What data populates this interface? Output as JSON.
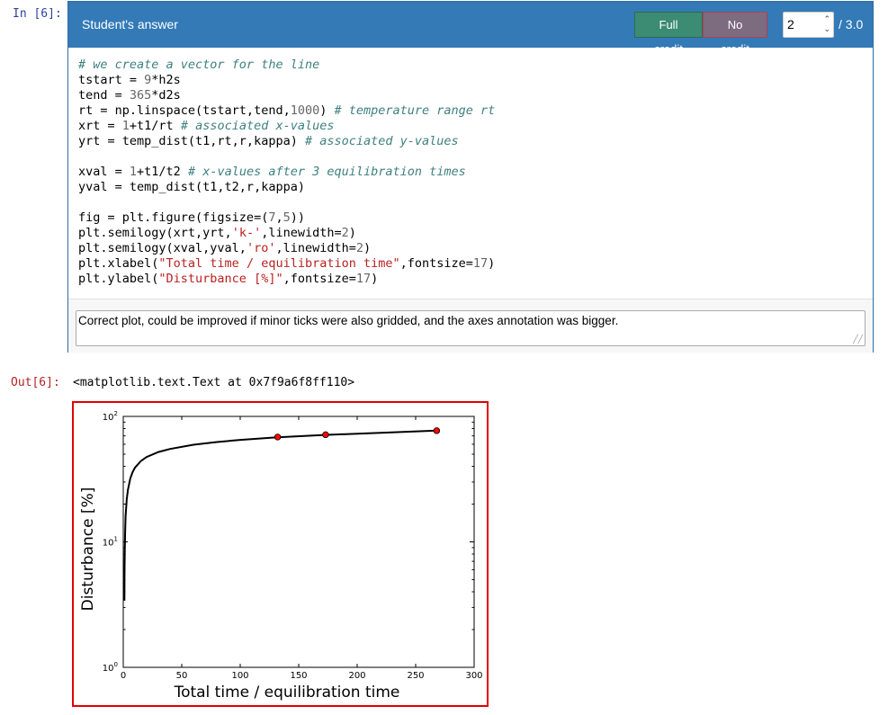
{
  "cell": {
    "in_prompt": "In [6]:",
    "out_prompt": "Out[6]:",
    "output_text": "<matplotlib.text.Text at 0x7f9a6f8ff110>"
  },
  "grading": {
    "title": "Student's answer",
    "full_credit_label": "Full credit",
    "no_credit_label": "No credit",
    "score_value": "2",
    "score_total": "/ 3.0",
    "comment": "Correct plot, could be improved if minor ticks were also gridded, and the axes annotation was bigger."
  },
  "code_lines": [
    [
      {
        "t": "# we create a vector for the line",
        "c": "cm"
      }
    ],
    [
      {
        "t": "tstart = "
      },
      {
        "t": "9",
        "c": "nm"
      },
      {
        "t": "*h2s"
      }
    ],
    [
      {
        "t": "tend = "
      },
      {
        "t": "365",
        "c": "nm"
      },
      {
        "t": "*d2s"
      }
    ],
    [
      {
        "t": "rt = np.linspace(tstart,tend,"
      },
      {
        "t": "1000",
        "c": "nm"
      },
      {
        "t": ") "
      },
      {
        "t": "# temperature range rt",
        "c": "cm"
      }
    ],
    [
      {
        "t": "xrt = "
      },
      {
        "t": "1",
        "c": "nm"
      },
      {
        "t": "+t1/rt "
      },
      {
        "t": "# associated x-values",
        "c": "cm"
      }
    ],
    [
      {
        "t": "yrt = temp_dist(t1,rt,r,kappa) "
      },
      {
        "t": "# associated y-values",
        "c": "cm"
      }
    ],
    [],
    [
      {
        "t": "xval = "
      },
      {
        "t": "1",
        "c": "nm"
      },
      {
        "t": "+t1/t2 "
      },
      {
        "t": "# x-values after 3 equilibration times",
        "c": "cm"
      }
    ],
    [
      {
        "t": "yval = temp_dist(t1,t2,r,kappa)"
      }
    ],
    [],
    [
      {
        "t": "fig = plt.figure(figsize=("
      },
      {
        "t": "7",
        "c": "nm"
      },
      {
        "t": ","
      },
      {
        "t": "5",
        "c": "nm"
      },
      {
        "t": "))"
      }
    ],
    [
      {
        "t": "plt.semilogy(xrt,yrt,"
      },
      {
        "t": "'k-'",
        "c": "st"
      },
      {
        "t": ",linewidth="
      },
      {
        "t": "2",
        "c": "nm"
      },
      {
        "t": ")"
      }
    ],
    [
      {
        "t": "plt.semilogy(xval,yval,"
      },
      {
        "t": "'ro'",
        "c": "st"
      },
      {
        "t": ",linewidth="
      },
      {
        "t": "2",
        "c": "nm"
      },
      {
        "t": ")"
      }
    ],
    [
      {
        "t": "plt.xlabel("
      },
      {
        "t": "\"Total time / equilibration time\"",
        "c": "st"
      },
      {
        "t": ",fontsize="
      },
      {
        "t": "17",
        "c": "nm"
      },
      {
        "t": ")"
      }
    ],
    [
      {
        "t": "plt.ylabel("
      },
      {
        "t": "\"Disturbance [%]\"",
        "c": "st"
      },
      {
        "t": ",fontsize="
      },
      {
        "t": "17",
        "c": "nm"
      },
      {
        "t": ")"
      }
    ]
  ],
  "chart_data": {
    "type": "line",
    "xlabel": "Total time / equilibration time",
    "ylabel": "Disturbance [%]",
    "xlim": [
      0,
      300
    ],
    "ylim": [
      1,
      100
    ],
    "yscale": "log",
    "xticks": [
      "0",
      "50",
      "100",
      "150",
      "200",
      "250",
      "300"
    ],
    "yticks": [
      {
        "base": "10",
        "exp": "0"
      },
      {
        "base": "10",
        "exp": "1"
      },
      {
        "base": "10",
        "exp": "2"
      }
    ],
    "grid": false,
    "series": [
      {
        "style": "black-line",
        "color": "#000000",
        "points": [
          [
            1.0,
            3.4
          ],
          [
            1.1,
            5.5
          ],
          [
            1.3,
            8.5
          ],
          [
            1.6,
            12
          ],
          [
            2,
            16
          ],
          [
            3,
            22
          ],
          [
            4,
            26
          ],
          [
            6,
            32
          ],
          [
            8,
            36
          ],
          [
            10,
            39
          ],
          [
            15,
            44
          ],
          [
            20,
            47.5
          ],
          [
            30,
            52
          ],
          [
            40,
            55
          ],
          [
            60,
            59.5
          ],
          [
            80,
            62.5
          ],
          [
            100,
            65
          ],
          [
            130,
            68
          ],
          [
            170,
            71
          ],
          [
            220,
            74
          ],
          [
            268,
            77
          ]
        ]
      },
      {
        "style": "red-dots",
        "color": "#ff0000",
        "points": [
          [
            132,
            68.5
          ],
          [
            173,
            71.5
          ],
          [
            268,
            77
          ]
        ]
      }
    ]
  }
}
